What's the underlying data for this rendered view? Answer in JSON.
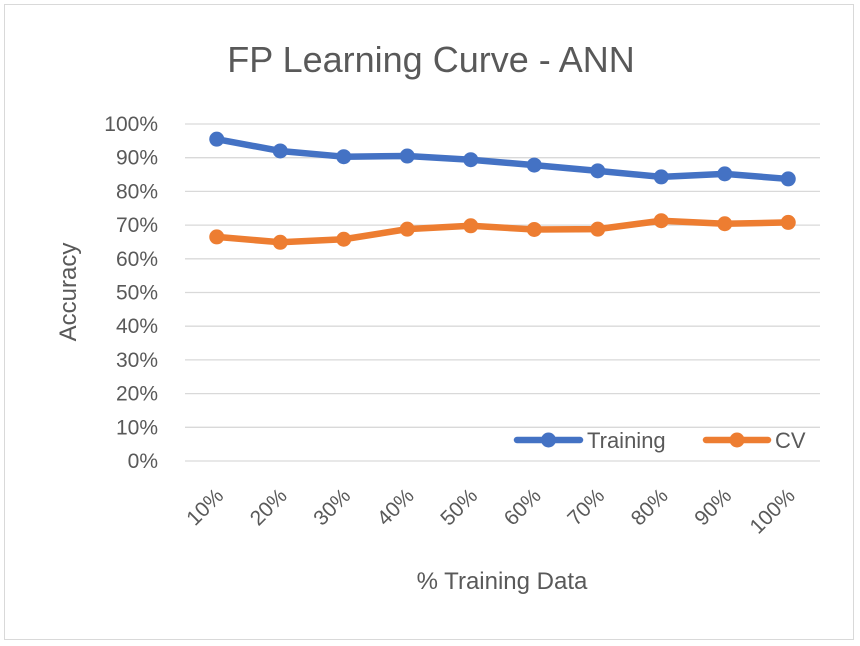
{
  "chart_data": {
    "type": "line",
    "title": "FP Learning Curve - ANN",
    "xlabel": "% Training Data",
    "ylabel": "Accuracy",
    "categories": [
      "10%",
      "20%",
      "30%",
      "40%",
      "50%",
      "60%",
      "70%",
      "80%",
      "90%",
      "100%"
    ],
    "y_ticks": [
      "0%",
      "10%",
      "20%",
      "30%",
      "40%",
      "50%",
      "60%",
      "70%",
      "80%",
      "90%",
      "100%"
    ],
    "ylim": [
      0,
      100
    ],
    "grid": true,
    "legend_position": "bottom-right",
    "series": [
      {
        "name": "Training",
        "color": "#4472c4",
        "values": [
          95.5,
          92,
          90.3,
          90.5,
          89.4,
          87.8,
          86.1,
          84.3,
          85.2,
          83.7
        ]
      },
      {
        "name": "CV",
        "color": "#ed7d31",
        "values": [
          66.5,
          64.9,
          65.8,
          68.8,
          69.8,
          68.7,
          68.8,
          71.3,
          70.4,
          70.8
        ]
      }
    ]
  }
}
